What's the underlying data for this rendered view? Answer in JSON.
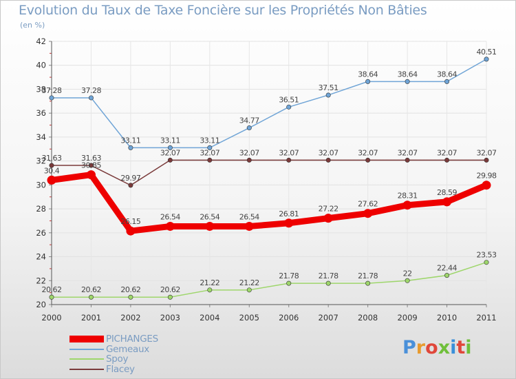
{
  "chart_data": {
    "type": "line",
    "title": "Evolution du Taux de Taxe Foncière sur les Propriétés Non Bâties",
    "unit_label": "(en %)",
    "xlabel": "",
    "ylabel": "",
    "ylim": [
      20,
      42
    ],
    "y_ticks": [
      "20",
      "22",
      "24",
      "26",
      "28",
      "30",
      "32",
      "34",
      "36",
      "38",
      "40",
      "42"
    ],
    "categories": [
      "2000",
      "2001",
      "2002",
      "2003",
      "2004",
      "2005",
      "2006",
      "2007",
      "2008",
      "2009",
      "2010",
      "2011"
    ],
    "series": [
      {
        "name": "PICHANGES",
        "color": "#ee0000",
        "values": [
          30.4,
          30.85,
          26.15,
          26.54,
          26.54,
          26.54,
          26.81,
          27.22,
          27.62,
          28.31,
          28.59,
          29.98
        ],
        "labels": [
          "30.4",
          "30.85",
          "26.15",
          "26.54",
          "26.54",
          "26.54",
          "26.81",
          "27.22",
          "27.62",
          "28.31",
          "28.59",
          "29.98"
        ]
      },
      {
        "name": "Gemeaux",
        "color": "#6fa4d6",
        "values": [
          37.28,
          37.28,
          33.11,
          33.11,
          33.11,
          34.77,
          36.51,
          37.51,
          38.64,
          38.64,
          38.64,
          40.51
        ],
        "labels": [
          "37.28",
          "37.28",
          "33.11",
          "33.11",
          "33.11",
          "34.77",
          "36.51",
          "37.51",
          "38.64",
          "38.64",
          "38.64",
          "40.51"
        ]
      },
      {
        "name": "Spoy",
        "color": "#9ed66b",
        "values": [
          20.62,
          20.62,
          20.62,
          20.62,
          21.22,
          21.22,
          21.78,
          21.78,
          21.78,
          22,
          22.44,
          23.53
        ],
        "labels": [
          "20.62",
          "20.62",
          "20.62",
          "20.62",
          "21.22",
          "21.22",
          "21.78",
          "21.78",
          "21.78",
          "22",
          "22.44",
          "23.53"
        ]
      },
      {
        "name": "Flacey",
        "color": "#7a3a3a",
        "values": [
          31.63,
          31.63,
          29.97,
          32.07,
          32.07,
          32.07,
          32.07,
          32.07,
          32.07,
          32.07,
          32.07,
          32.07
        ],
        "labels": [
          "31.63",
          "31.63",
          "29.97",
          "32.07",
          "32.07",
          "32.07",
          "32.07",
          "32.07",
          "32.07",
          "32.07",
          "32.07",
          "32.07"
        ]
      }
    ],
    "legend_position": "bottom-left",
    "grid": true
  },
  "logo": {
    "text": "Proxiti",
    "letter_colors": [
      "#4a90d9",
      "#e89a2e",
      "#e0473a",
      "#6fbf3a",
      "#3a8fd9",
      "#e0473a",
      "#6fbf3a"
    ]
  }
}
